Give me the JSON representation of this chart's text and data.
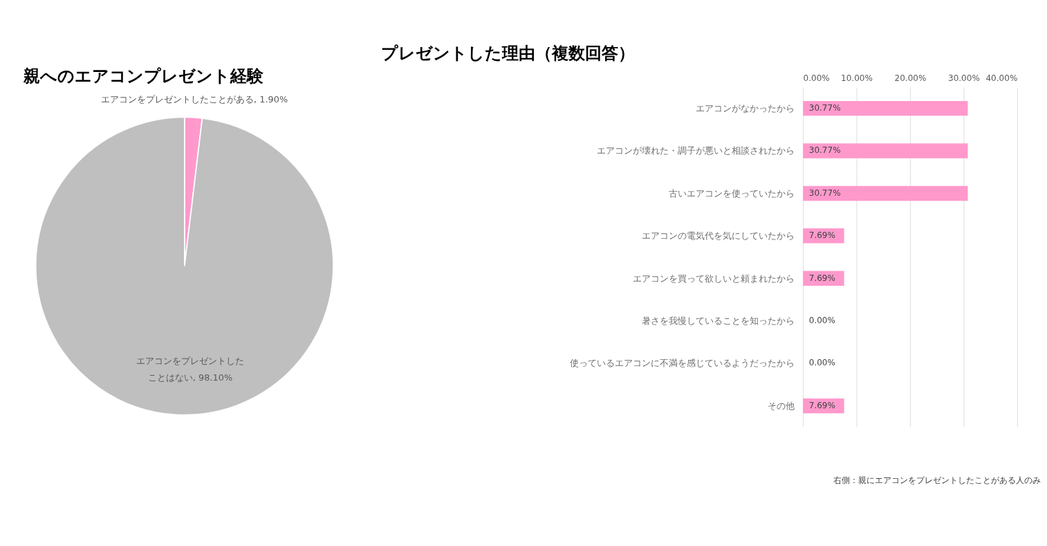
{
  "chart_data": [
    {
      "type": "pie",
      "title": "親へのエアコンプレゼント経験",
      "categories": [
        "エアコンをプレゼントしたことがある",
        "エアコンをプレゼントしたことはない"
      ],
      "values": [
        1.9,
        98.1
      ],
      "colors": [
        "#ff99cc",
        "#bfbfbf"
      ],
      "value_labels": [
        "1.90%",
        "98.10%"
      ],
      "legend": false
    },
    {
      "type": "bar",
      "orientation": "horizontal",
      "title": "プレゼントした理由（複数回答）",
      "categories": [
        "エアコンがなかったから",
        "エアコンが壊れた・調子が悪いと相談されたから",
        "古いエアコンを使っていたから",
        "エアコンの電気代を気にしていたから",
        "エアコンを買って欲しいと頼まれたから",
        "暑さを我慢していることを知ったから",
        "使っているエアコンに不満を感じているようだったから",
        "その他"
      ],
      "values": [
        30.77,
        30.77,
        30.77,
        7.69,
        7.69,
        0,
        0,
        7.69
      ],
      "color": "#ff99cc",
      "value_labels": [
        "30.77%",
        "30.77%",
        "30.77%",
        "7.69%",
        "7.69%",
        "0.00%",
        "0.00%",
        "7.69%"
      ],
      "xlim": [
        0,
        40
      ],
      "xticks": [
        {
          "value": 0,
          "label": "0.00%"
        },
        {
          "value": 10,
          "label": "10.00%"
        },
        {
          "value": 20,
          "label": "20.00%"
        },
        {
          "value": 30,
          "label": "30.00%"
        },
        {
          "value": 40,
          "label": "40.00%"
        }
      ],
      "grid": "x",
      "legend": false,
      "annotations": [
        "右側：親にエアコンをプレゼントしたことがある人のみ"
      ]
    }
  ]
}
